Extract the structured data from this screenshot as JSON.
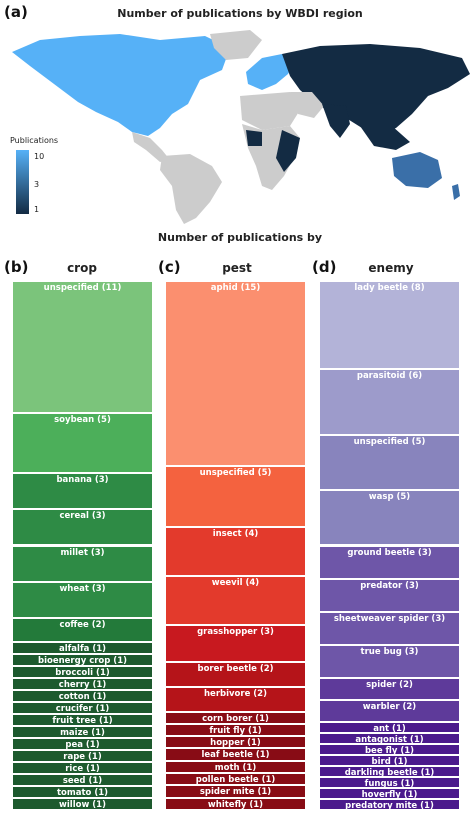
{
  "panel_labels": {
    "a": "(a)",
    "b": "(b)",
    "c": "(c)",
    "d": "(d)"
  },
  "map": {
    "title": "Number of publications by WBDI region",
    "legend": {
      "title": "Publications",
      "ticks": [
        "10",
        "3",
        "1"
      ]
    },
    "colors": {
      "high": "#56B1F7",
      "low": "#132B43",
      "mid": "#3a6fa8",
      "nodata": "#cccccc"
    }
  },
  "treemaps_title": "Number of publications by",
  "chart_data": [
    {
      "type": "bar",
      "title": "crop",
      "categories": [
        "unspecified",
        "soybean",
        "banana",
        "cereal",
        "millet",
        "wheat",
        "coffee",
        "alfalfa",
        "bioenergy crop",
        "broccoli",
        "cherry",
        "cotton",
        "crucifer",
        "fruit tree",
        "maize",
        "pea",
        "rape",
        "rice",
        "seed",
        "tomato",
        "willow"
      ],
      "values": [
        11,
        5,
        3,
        3,
        3,
        3,
        2,
        1,
        1,
        1,
        1,
        1,
        1,
        1,
        1,
        1,
        1,
        1,
        1,
        1,
        1
      ],
      "colors": [
        "#7bc47b",
        "#4caf5a",
        "#2e8b45",
        "#2e8b45",
        "#2e8b45",
        "#2e8b45",
        "#237a3a",
        "#1d5a2e",
        "#1d5a2e",
        "#1d5a2e",
        "#1d5a2e",
        "#1d5a2e",
        "#1d5a2e",
        "#1d5a2e",
        "#1d5a2e",
        "#1d5a2e",
        "#1d5a2e",
        "#1d5a2e",
        "#1d5a2e",
        "#1d5a2e",
        "#1d5a2e"
      ]
    },
    {
      "type": "bar",
      "title": "pest",
      "categories": [
        "aphid",
        "unspecified",
        "insect",
        "weevil",
        "grasshopper",
        "borer beetle",
        "herbivore",
        "corn borer",
        "fruit fly",
        "hopper",
        "leaf beetle",
        "moth",
        "pollen beetle",
        "spider mite",
        "whitefly"
      ],
      "values": [
        15,
        5,
        4,
        4,
        3,
        2,
        2,
        1,
        1,
        1,
        1,
        1,
        1,
        1,
        1
      ],
      "colors": [
        "#fb8f6f",
        "#f4623f",
        "#e33a2c",
        "#e33a2c",
        "#c8191f",
        "#b51419",
        "#b51419",
        "#880c15",
        "#880c15",
        "#880c15",
        "#880c15",
        "#880c15",
        "#880c15",
        "#880c15",
        "#880c15"
      ]
    },
    {
      "type": "bar",
      "title": "enemy",
      "categories": [
        "lady beetle",
        "parasitoid",
        "unspecified",
        "wasp",
        "ground beetle",
        "predator",
        "sheetweaver spider",
        "true bug",
        "spider",
        "warbler",
        "ant",
        "antagonist",
        "bee fly",
        "bird",
        "darkling beetle",
        "fungus",
        "hoverfly",
        "predatory mite"
      ],
      "values": [
        8,
        6,
        5,
        5,
        3,
        3,
        3,
        3,
        2,
        2,
        1,
        1,
        1,
        1,
        1,
        1,
        1,
        1
      ],
      "colors": [
        "#b3b3d8",
        "#9d9bcb",
        "#8884bd",
        "#8884bd",
        "#6e56a8",
        "#6e56a8",
        "#6e56a8",
        "#6e56a8",
        "#5e3a9a",
        "#5e3a9a",
        "#4b1a8c",
        "#4b1a8c",
        "#4b1a8c",
        "#4b1a8c",
        "#4b1a8c",
        "#4b1a8c",
        "#4b1a8c",
        "#4b1a8c"
      ]
    }
  ]
}
